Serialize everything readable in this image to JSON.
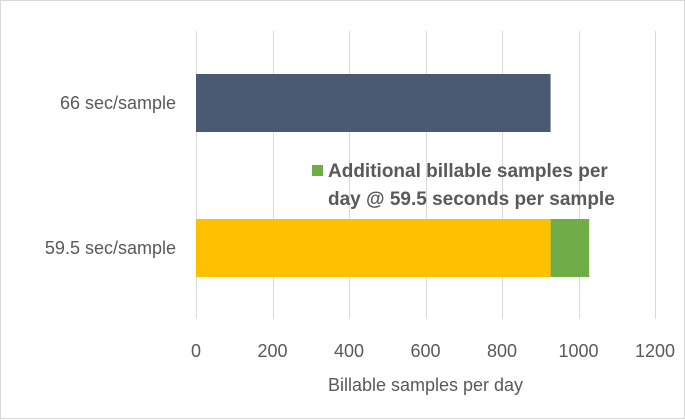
{
  "chart_data": {
    "type": "bar",
    "orientation": "horizontal",
    "stacked": true,
    "categories": [
      "66 sec/sample",
      "59.5 sec/sample"
    ],
    "series": [
      {
        "values": [
          927,
          927
        ],
        "colors": [
          "#4a5a72",
          "#ffc000"
        ]
      },
      {
        "name_lines": [
          "Additional billable samples per",
          "day @ 59.5 seconds per sample"
        ],
        "values": [
          0,
          101
        ],
        "color": "#70ad47"
      }
    ],
    "xlabel": "Billable samples per day",
    "xlim": [
      0,
      1200
    ],
    "xticks": [
      0,
      200,
      400,
      600,
      800,
      1000,
      1200
    ],
    "grid": "vertical",
    "legend_placement": "center-right"
  }
}
